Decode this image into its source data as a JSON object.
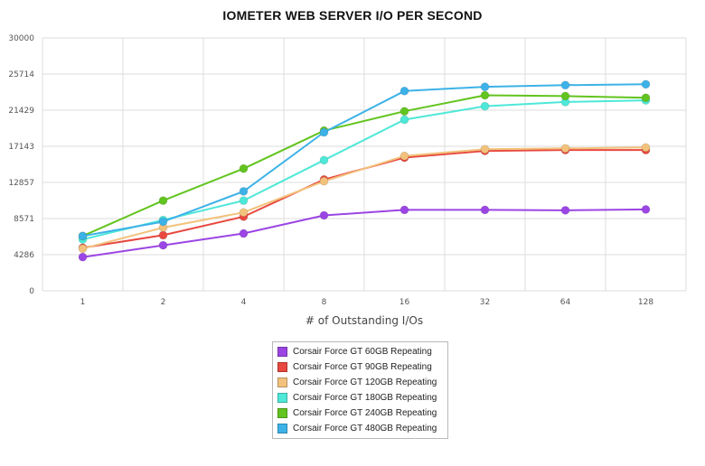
{
  "chart_data": {
    "type": "line",
    "title": "IOMETER WEB SERVER I/O PER SECOND",
    "xlabel": "# of Outstanding I/Os",
    "ylabel": "",
    "categories": [
      "1",
      "2",
      "4",
      "8",
      "16",
      "32",
      "64",
      "128"
    ],
    "y_ticks": [
      "0",
      "4286",
      "8571",
      "12857",
      "17143",
      "21429",
      "25714",
      "30000"
    ],
    "ylim": [
      0,
      30000
    ],
    "grid": true,
    "legend_position": "bottom",
    "series": [
      {
        "name": "Corsair Force GT 60GB Repeating",
        "color": "#9b45e4",
        "values": [
          4000,
          5400,
          6800,
          8950,
          9600,
          9600,
          9550,
          9650
        ]
      },
      {
        "name": "Corsair Force GT 90GB Repeating",
        "color": "#e8483f",
        "values": [
          5100,
          6600,
          8800,
          13200,
          15800,
          16600,
          16700,
          16700
        ]
      },
      {
        "name": "Corsair Force GT 120GB Repeating",
        "color": "#f2c27c",
        "values": [
          5000,
          7500,
          9300,
          13000,
          16000,
          16800,
          16900,
          17000
        ]
      },
      {
        "name": "Corsair Force GT 180GB Repeating",
        "color": "#4de8d8",
        "values": [
          6100,
          8400,
          10700,
          15500,
          20300,
          21900,
          22400,
          22600
        ]
      },
      {
        "name": "Corsair Force GT 240GB Repeating",
        "color": "#62c41f",
        "values": [
          6500,
          10700,
          14500,
          19000,
          21300,
          23200,
          23100,
          22900
        ]
      },
      {
        "name": "Corsair Force GT 480GB Repeating",
        "color": "#3db2e8",
        "values": [
          6500,
          8200,
          11800,
          18800,
          23700,
          24200,
          24400,
          24500
        ]
      }
    ]
  }
}
